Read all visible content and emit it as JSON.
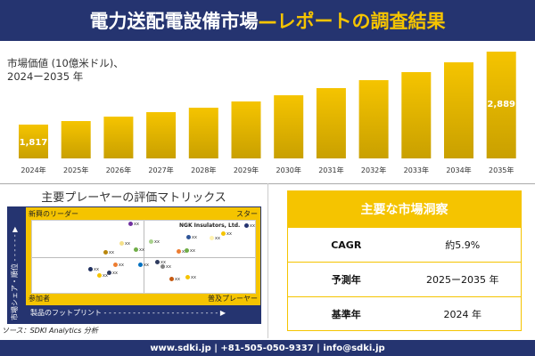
{
  "header": {
    "title_main": "電力送配電設備市場",
    "title_accent": "—レポートの調査結果"
  },
  "chart_data": {
    "type": "bar",
    "title": "市場価値 (10億米ドル)、",
    "subtitle": "2024ー2035 年",
    "categories": [
      "2024年",
      "2025年",
      "2026年",
      "2027年",
      "2028年",
      "2029年",
      "2030年",
      "2031年",
      "2032年",
      "2033年",
      "2034年",
      "2035年"
    ],
    "values": [
      1817,
      1869,
      1934,
      2000,
      2065,
      2157,
      2248,
      2353,
      2470,
      2588,
      2732,
      2889
    ],
    "data_labels": {
      "0": "1,817",
      "11": "2,889"
    },
    "ylim": [
      1320,
      2889
    ],
    "grid": false,
    "colors": {
      "bar": "#f5c400",
      "bar_dark": "#c9a000"
    }
  },
  "matrix": {
    "title": "主要プレーヤーの評価マトリックス",
    "q_tl": "新興のリーダー",
    "q_tr": "スター",
    "q_bl": "参加者",
    "q_br": "普及プレーヤー",
    "x_axis": "製品のフットプリント",
    "y_axis": "市場シェア・順位",
    "highlight": "NGK Insulators, Ltd.",
    "point_label": "xx",
    "points": [
      [
        145,
        50,
        "#7030a0"
      ],
      [
        135,
        72,
        "#f5e08a"
      ],
      [
        117,
        82,
        "#b8860b"
      ],
      [
        151,
        79,
        "#70ad47"
      ],
      [
        100,
        101,
        "#1f2f5f"
      ],
      [
        128,
        96,
        "#ed7d31"
      ],
      [
        110,
        108,
        "#f5c400"
      ],
      [
        121,
        105,
        "#2f3b5f"
      ],
      [
        156,
        96,
        "#0070c0"
      ],
      [
        168,
        70,
        "#a9d18e"
      ],
      [
        210,
        65,
        "#2f5597"
      ],
      [
        236,
        66,
        "#fff2b0"
      ],
      [
        249,
        61,
        "#f5c400"
      ],
      [
        275,
        52,
        "#253470"
      ],
      [
        199,
        81,
        "#ed7d31"
      ],
      [
        208,
        80,
        "#70ad47"
      ],
      [
        175,
        93,
        "#2f3b5f"
      ],
      [
        181,
        98,
        "#808080"
      ],
      [
        191,
        112,
        "#c55a11"
      ],
      [
        209,
        110,
        "#f5c400"
      ]
    ]
  },
  "source": "ソース：SDKI Analytics 分析",
  "insights": {
    "title": "主要な市場洞察",
    "rows": [
      {
        "k": "CAGR",
        "v": "約5.9%"
      },
      {
        "k": "予測年",
        "v": "2025ー2035 年"
      },
      {
        "k": "基準年",
        "v": "2024 年"
      }
    ]
  },
  "footer": "www.sdki.jp | +81-505-050-9337 | info@sdki.jp"
}
